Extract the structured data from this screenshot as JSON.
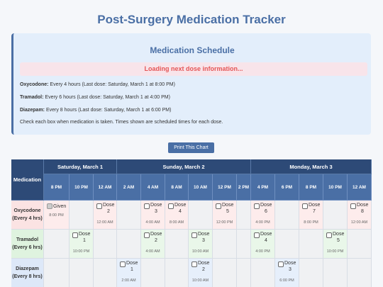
{
  "title": "Post-Surgery Medication Tracker",
  "schedule": {
    "title": "Medication Schedule",
    "loading": "Loading next dose information...",
    "meds": [
      {
        "name": "Oxycodone:",
        "detail": " Every 4 hours (Last dose: Saturday, March 1 at 8:00 PM)"
      },
      {
        "name": "Tramadol:",
        "detail": " Every 6 hours (Last dose: Saturday, March 1 at 4:00 PM)"
      },
      {
        "name": "Diazepam:",
        "detail": " Every 8 hours (Last dose: Saturday, March 1 at 6:00 PM)"
      }
    ],
    "note": "Check each box when medication is taken. Times shown are scheduled times for each dose."
  },
  "print_label": "Print This Chart",
  "table": {
    "med_header": "Medication",
    "days": [
      "Saturday, March 1",
      "Sunday, March 2",
      "Monday, March 3"
    ],
    "times": [
      "8 PM",
      "10 PM",
      "12 AM",
      "2 AM",
      "4 AM",
      "8 AM",
      "10 AM",
      "12 PM",
      "2 PM",
      "4 PM",
      "6 PM",
      "8 PM",
      "10 PM",
      "12 AM"
    ],
    "rows": [
      {
        "name": "Oxycodone (Every 4 hrs)",
        "color": "#fbe3e3",
        "cell_bg": "#fdecec",
        "doses": [
          {
            "col": 0,
            "label": "Given",
            "time": "8:00 PM",
            "checked": true
          },
          {
            "col": 2,
            "label": "Dose 2",
            "time": "12:00 AM"
          },
          {
            "col": 4,
            "label": "Dose 3",
            "time": "4:00 AM"
          },
          {
            "col": 5,
            "label": "Dose 4",
            "time": "8:00 AM"
          },
          {
            "col": 7,
            "label": "Dose 5",
            "time": "12:00 PM"
          },
          {
            "col": 9,
            "label": "Dose 6",
            "time": "4:00 PM"
          },
          {
            "col": 11,
            "label": "Dose 7",
            "time": "8:00 PM"
          },
          {
            "col": 13,
            "label": "Dose 8",
            "time": "12:00 AM"
          }
        ]
      },
      {
        "name": "Tramadol (Every 6 hrs)",
        "color": "#dff3df",
        "cell_bg": "#e9f7e9",
        "doses": [
          {
            "col": 1,
            "label": "Dose 1",
            "time": "10:00 PM"
          },
          {
            "col": 4,
            "label": "Dose 2",
            "time": "4:00 AM"
          },
          {
            "col": 6,
            "label": "Dose 3",
            "time": "10:00 AM"
          },
          {
            "col": 9,
            "label": "Dose 4",
            "time": "4:00 PM"
          },
          {
            "col": 12,
            "label": "Dose 5",
            "time": "10:00 PM"
          }
        ]
      },
      {
        "name": "Diazepam (Every 8 hrs)",
        "color": "#dde8f8",
        "cell_bg": "#e6effb",
        "doses": [
          {
            "col": 3,
            "label": "Dose 1",
            "time": "2:00 AM"
          },
          {
            "col": 6,
            "label": "Dose 2",
            "time": "10:00 AM"
          },
          {
            "col": 10,
            "label": "Dose 3",
            "time": "6:00 PM"
          }
        ]
      }
    ]
  }
}
